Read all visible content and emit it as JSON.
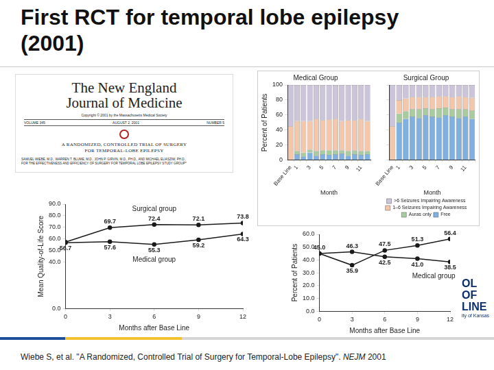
{
  "title": [
    "First RCT for temporal lobe epilepsy",
    "(2001)"
  ],
  "journal": {
    "name_lines": [
      "The New England",
      "Journal of Medicine"
    ],
    "copyright": "Copyright © 2001 by the Massachusetts Medical Society",
    "volume": "VOLUME 345",
    "date": "AUGUST 2, 2001",
    "number": "NUMBER 5",
    "article_title_lines": [
      "A RANDOMIZED, CONTROLLED TRIAL OF SURGERY",
      "FOR TEMPORAL-LOBE EPILEPSY"
    ],
    "authors_lines": [
      "SAMUEL WIEBE, M.D., WARREN T. BLUME, M.D., JOHN P. GIRVIN, M.D., PH.D., AND MICHAEL ELIASZIW, PH.D.,",
      "FOR THE EFFECTIVENESS AND EFFICIENCY OF SURGERY FOR TEMPORAL LOBE EPILEPSY STUDY GROUP*"
    ]
  },
  "logo": [
    "OL OF",
    "LINE",
    "ity of Kansas"
  ],
  "citation": {
    "text": "Wiebe S, et al. \"A Randomized, Controlled Trial of Surgery for Temporal-Lobe Epilepsy\".",
    "journal": "NEJM",
    "year": "2001"
  },
  "chart_data": [
    {
      "type": "bar",
      "stacked": true,
      "title": "Medical Group",
      "x_label": "Month",
      "y_label": "Percent of Patients",
      "categories": [
        "Base Line",
        "1",
        null,
        "3",
        null,
        "5",
        null,
        "7",
        null,
        "9",
        null,
        "11",
        null
      ],
      "series": [
        {
          "color": "#7fb0df",
          "values": [
            0,
            8,
            5,
            10,
            6,
            8,
            7,
            8,
            9,
            6,
            8,
            7,
            8
          ]
        },
        {
          "color": "#a8cba0",
          "values": [
            0,
            4,
            5,
            4,
            6,
            5,
            6,
            5,
            4,
            6,
            5,
            5,
            4
          ]
        },
        {
          "color": "#f3c7ab",
          "values": [
            45,
            40,
            42,
            38,
            43,
            40,
            41,
            42,
            39,
            41,
            40,
            43,
            40
          ]
        },
        {
          "color": "#cbc4da",
          "values": [
            55,
            48,
            48,
            48,
            45,
            47,
            46,
            45,
            48,
            47,
            47,
            45,
            48
          ]
        }
      ],
      "ylim": [
        0,
        100
      ],
      "yticks": [
        0,
        20,
        40,
        60,
        80,
        100
      ],
      "grid": false
    },
    {
      "type": "bar",
      "stacked": true,
      "title": "Surgical Group",
      "x_label": "Month",
      "categories": [
        "Base Line",
        "1",
        null,
        "3",
        null,
        "5",
        null,
        "7",
        null,
        "9",
        null,
        "11",
        null
      ],
      "series": [
        {
          "name": "Free",
          "color": "#7fb0df",
          "values": [
            0,
            50,
            55,
            58,
            56,
            60,
            58,
            57,
            60,
            58,
            56,
            58,
            55
          ]
        },
        {
          "name": "Auras only",
          "color": "#a8cba0",
          "values": [
            0,
            12,
            10,
            10,
            12,
            9,
            10,
            12,
            10,
            10,
            12,
            10,
            11
          ]
        },
        {
          "name": "1–6 Seizures Impairing Awareness",
          "color": "#f3c7ab",
          "values": [
            45,
            18,
            17,
            16,
            16,
            15,
            16,
            16,
            15,
            16,
            17,
            16,
            17
          ]
        },
        {
          "name": ">6 Seizures Impairing Awareness",
          "color": "#cbc4da",
          "values": [
            55,
            20,
            18,
            16,
            16,
            16,
            16,
            15,
            15,
            16,
            15,
            16,
            17
          ]
        }
      ],
      "ylim": [
        0,
        100
      ],
      "yticks": [
        0,
        20,
        40,
        60,
        80,
        100
      ],
      "grid": false,
      "legend": "bottom",
      "tick_labels": "x"
    },
    {
      "type": "line",
      "x_label": "Months after Base Line",
      "y_label": "Mean Quality-of-Life Score",
      "x": [
        0,
        3,
        6,
        9,
        12
      ],
      "series": [
        {
          "name": "Surgical group",
          "color": "#1a1a1a",
          "marker": "circle",
          "line_style": "solid",
          "values": [
            57.3,
            69.7,
            72.4,
            72.1,
            73.8
          ],
          "value_labels": [
            null,
            "69.7",
            "72.4",
            "72.1",
            "73.8"
          ]
        },
        {
          "name": "Medical group",
          "color": "#1a1a1a",
          "marker": "circle",
          "line_style": "solid",
          "values": [
            56.7,
            57.6,
            55.3,
            59.2,
            64.3
          ],
          "value_labels": [
            "56.7",
            "57.6",
            "55.3",
            "59.2",
            "64.3"
          ]
        }
      ],
      "xlim": [
        0,
        12
      ],
      "xticks": [
        0,
        3,
        6,
        9,
        12
      ],
      "ylim": [
        0,
        90
      ],
      "yticks": [
        {
          "value": 0,
          "label": "0.0"
        },
        {
          "value": 40,
          "label": "40.0"
        },
        {
          "value": 50,
          "label": "50.0"
        },
        {
          "value": 60,
          "label": "60.0"
        },
        {
          "value": 70,
          "label": "70.0"
        },
        {
          "value": 80,
          "label": "80.0"
        },
        {
          "value": 90,
          "label": "90.0"
        }
      ],
      "grid": false,
      "data_labels": true
    },
    {
      "type": "line",
      "x_label": "Months after Base Line",
      "y_label": "Percent of Patients",
      "x": [
        0,
        3,
        6,
        9,
        12
      ],
      "series": [
        {
          "color": "#1a1a1a",
          "marker": "circle",
          "line_style": "solid",
          "values": [
            45.0,
            35.9,
            47.5,
            51.3,
            56.4
          ],
          "value_labels": [
            "45.0",
            "35.9",
            "47.5",
            "51.3",
            "56.4"
          ]
        },
        {
          "name": "Medical group",
          "color": "#1a1a1a",
          "marker": "circle",
          "line_style": "solid",
          "values": [
            45.0,
            46.3,
            42.5,
            41.0,
            38.5
          ],
          "value_labels": [
            null,
            "46.3",
            "42.5",
            "41.0",
            "38.5"
          ]
        }
      ],
      "xlim": [
        0,
        12
      ],
      "xticks": [
        0,
        3,
        6,
        9,
        12
      ],
      "ylim": [
        0,
        60
      ],
      "yticks": [
        {
          "value": 0,
          "label": "0.0"
        },
        {
          "value": 10,
          "label": "10.0"
        },
        {
          "value": 20,
          "label": "20.0"
        },
        {
          "value": 30,
          "label": "30.0"
        },
        {
          "value": 40,
          "label": "40.0"
        },
        {
          "value": 50,
          "label": "50.0"
        },
        {
          "value": 60,
          "label": "60.0"
        }
      ],
      "grid": false,
      "data_labels": true
    }
  ]
}
